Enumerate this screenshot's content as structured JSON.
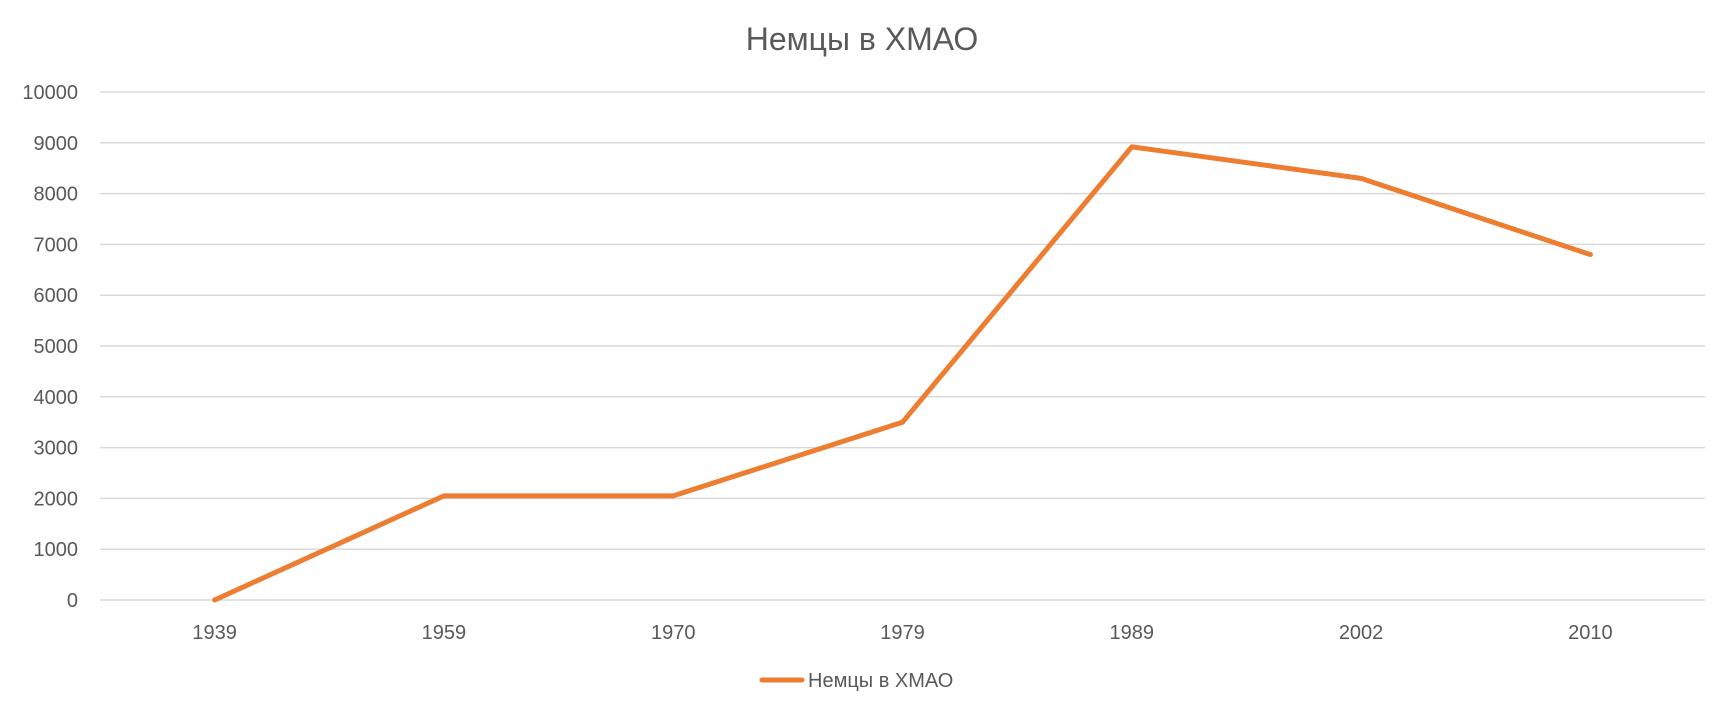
{
  "chart_data": {
    "type": "line",
    "title": "Немцы в ХМАО",
    "xlabel": "",
    "ylabel": "",
    "categories": [
      "1939",
      "1959",
      "1970",
      "1979",
      "1989",
      "2002",
      "2010"
    ],
    "series": [
      {
        "name": "Немцы в ХМАО",
        "values": [
          0,
          2050,
          2050,
          3500,
          8920,
          8300,
          6800
        ],
        "color": "#ED7D31"
      }
    ],
    "ylim": [
      0,
      10000
    ],
    "yticks": [
      "0",
      "1000",
      "2000",
      "3000",
      "4000",
      "5000",
      "6000",
      "7000",
      "8000",
      "9000",
      "10000"
    ],
    "grid": true,
    "legend": "bottom",
    "gridline_color": "#D9D9D9",
    "text_color": "#595959"
  }
}
